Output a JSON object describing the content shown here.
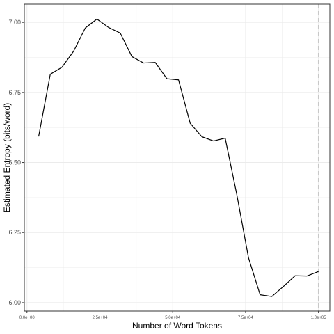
{
  "chart_data": {
    "type": "line",
    "xlabel": "Number of Word Tokens",
    "ylabel": "Estimated Entropy (bits/word)",
    "xlim": [
      -900,
      103900
    ],
    "ylim": [
      5.97,
      7.065
    ],
    "x_ticks": [
      0,
      25000,
      50000,
      75000,
      100000
    ],
    "x_tick_labels": [
      "0.0e+00",
      "2.5e+04",
      "5.0e+04",
      "7.5e+04",
      "1.0e+05"
    ],
    "y_ticks": [
      6.0,
      6.25,
      6.5,
      6.75,
      7.0
    ],
    "y_tick_labels": [
      "6.00",
      "6.25",
      "6.50",
      "6.75",
      "7.00"
    ],
    "grid": true,
    "reference_line": {
      "x": 100000,
      "style": "dashed",
      "color": "#c8c8c8"
    },
    "colors": {
      "line": "#000000",
      "grid": "#ebebeb",
      "panel_border": "#333333"
    },
    "series": [
      {
        "x": [
          4000,
          8000,
          12000,
          16000,
          20000,
          24000,
          28000,
          32000,
          36000,
          40000,
          44000,
          48000,
          52000,
          56000,
          60000,
          64000,
          68000,
          72000,
          76000,
          80000,
          84000,
          88000,
          92000,
          96000,
          100000
        ],
        "y": [
          6.593,
          6.815,
          6.84,
          6.897,
          6.98,
          7.012,
          6.982,
          6.962,
          6.878,
          6.855,
          6.857,
          6.799,
          6.795,
          6.64,
          6.592,
          6.577,
          6.587,
          6.385,
          6.16,
          6.028,
          6.022,
          6.058,
          6.096,
          6.095,
          6.111
        ]
      }
    ]
  }
}
